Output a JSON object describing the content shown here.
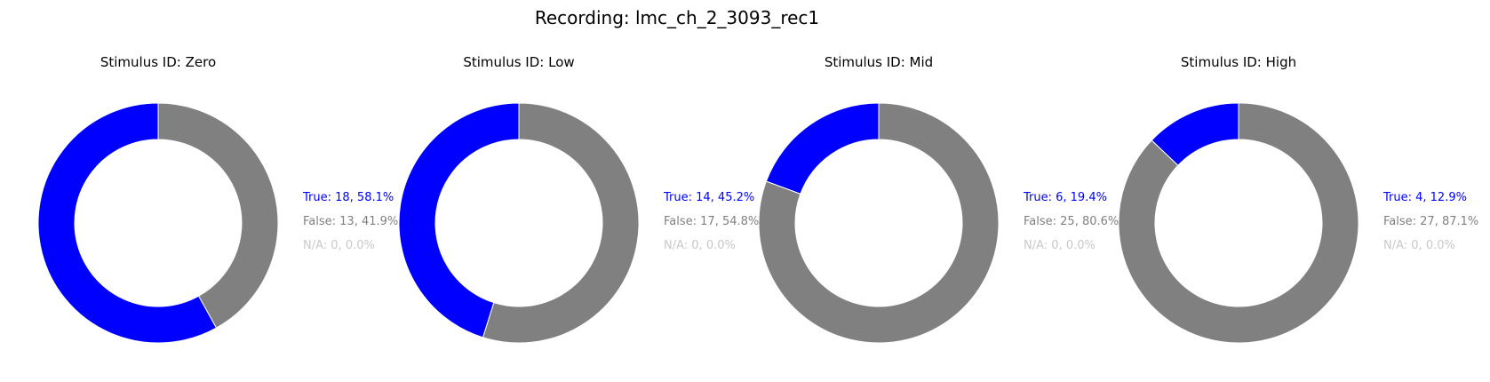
{
  "title": "Recording: lmc_ch_2_3093_rec1",
  "colors": {
    "true": "#0000ff",
    "false": "#808080",
    "na": "#c8c8c8"
  },
  "chart_data": [
    {
      "type": "pie",
      "style": "donut",
      "title": "Stimulus ID: Zero",
      "slices": [
        {
          "name": "True",
          "count": 18,
          "percent": 58.1,
          "color": "#0000ff"
        },
        {
          "name": "False",
          "count": 13,
          "percent": 41.9,
          "color": "#808080"
        },
        {
          "name": "N/A",
          "count": 0,
          "percent": 0.0,
          "color": "#c8c8c8"
        }
      ],
      "labels": [
        "True: 18, 58.1%",
        "False: 13, 41.9%",
        "N/A: 0, 0.0%"
      ]
    },
    {
      "type": "pie",
      "style": "donut",
      "title": "Stimulus ID: Low",
      "slices": [
        {
          "name": "True",
          "count": 14,
          "percent": 45.2,
          "color": "#0000ff"
        },
        {
          "name": "False",
          "count": 17,
          "percent": 54.8,
          "color": "#808080"
        },
        {
          "name": "N/A",
          "count": 0,
          "percent": 0.0,
          "color": "#c8c8c8"
        }
      ],
      "labels": [
        "True: 14, 45.2%",
        "False: 17, 54.8%",
        "N/A: 0, 0.0%"
      ]
    },
    {
      "type": "pie",
      "style": "donut",
      "title": "Stimulus ID: Mid",
      "slices": [
        {
          "name": "True",
          "count": 6,
          "percent": 19.4,
          "color": "#0000ff"
        },
        {
          "name": "False",
          "count": 25,
          "percent": 80.6,
          "color": "#808080"
        },
        {
          "name": "N/A",
          "count": 0,
          "percent": 0.0,
          "color": "#c8c8c8"
        }
      ],
      "labels": [
        "True: 6, 19.4%",
        "False: 25, 80.6%",
        "N/A: 0, 0.0%"
      ]
    },
    {
      "type": "pie",
      "style": "donut",
      "title": "Stimulus ID: High",
      "slices": [
        {
          "name": "True",
          "count": 4,
          "percent": 12.9,
          "color": "#0000ff"
        },
        {
          "name": "False",
          "count": 27,
          "percent": 87.1,
          "color": "#808080"
        },
        {
          "name": "N/A",
          "count": 0,
          "percent": 0.0,
          "color": "#c8c8c8"
        }
      ],
      "labels": [
        "True: 4, 12.9%",
        "False: 27, 87.1%",
        "N/A: 0, 0.0%"
      ]
    }
  ]
}
